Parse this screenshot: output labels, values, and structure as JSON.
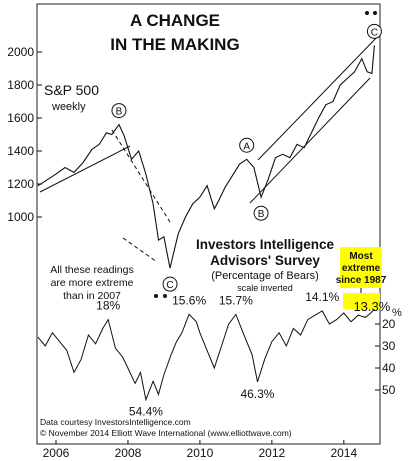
{
  "chart_data": [
    {
      "type": "line",
      "title": "A CHANGE IN THE MAKING",
      "series": [
        {
          "name": "S&P 500 weekly"
        }
      ],
      "series_label": "S&P 500",
      "series_sublabel": "weekly",
      "x_ticks": [
        "2006",
        "2008",
        "2010",
        "2012",
        "2014"
      ],
      "y_ticks": [
        1000,
        1200,
        1400,
        1600,
        1800,
        2000
      ],
      "ylim": [
        700,
        2100
      ],
      "x": [
        2005.5,
        2005.75,
        2006.0,
        2006.25,
        2006.5,
        2006.75,
        2007.0,
        2007.2,
        2007.4,
        2007.55,
        2007.75,
        2007.9,
        2008.1,
        2008.3,
        2008.5,
        2008.7,
        2008.85,
        2009.0,
        2009.17,
        2009.4,
        2009.6,
        2009.8,
        2010.0,
        2010.2,
        2010.4,
        2010.5,
        2010.7,
        2010.9,
        2011.1,
        2011.3,
        2011.5,
        2011.7,
        2011.9,
        2012.1,
        2012.3,
        2012.5,
        2012.7,
        2012.9,
        2013.1,
        2013.3,
        2013.5,
        2013.7,
        2013.9,
        2014.1,
        2014.3,
        2014.5,
        2014.65,
        2014.78,
        2014.85
      ],
      "values": [
        1190,
        1225,
        1260,
        1300,
        1270,
        1330,
        1410,
        1440,
        1510,
        1500,
        1560,
        1490,
        1350,
        1400,
        1260,
        1080,
        860,
        880,
        690,
        900,
        1000,
        1080,
        1120,
        1190,
        1050,
        1090,
        1180,
        1250,
        1320,
        1350,
        1300,
        1120,
        1230,
        1360,
        1380,
        1360,
        1440,
        1420,
        1510,
        1600,
        1680,
        1700,
        1800,
        1840,
        1880,
        1960,
        1880,
        1870,
        2040
      ],
      "wave_labels": [
        {
          "label": "B",
          "x": 2007.75
        },
        {
          "label": "C",
          "x": 2009.17
        },
        {
          "label": "A",
          "x": 2011.3
        },
        {
          "label": "B",
          "x": 2011.7
        },
        {
          "label": "C",
          "x": 2014.85
        }
      ]
    },
    {
      "type": "line",
      "title": "Investors Intelligence Advisors' Survey",
      "subtitle": "(Percentage of Bears)",
      "note": "scale inverted",
      "series": [
        {
          "name": "Percentage of Bears"
        }
      ],
      "y_axis_unit": "%",
      "y_ticks": [
        20,
        30,
        40,
        50
      ],
      "inverted": true,
      "ylim": [
        10,
        58
      ],
      "x": [
        2005.5,
        2005.7,
        2005.9,
        2006.1,
        2006.3,
        2006.5,
        2006.7,
        2006.9,
        2007.1,
        2007.3,
        2007.45,
        2007.65,
        2007.85,
        2008.0,
        2008.2,
        2008.35,
        2008.5,
        2008.7,
        2008.85,
        2009.0,
        2009.2,
        2009.35,
        2009.5,
        2009.7,
        2009.9,
        2010.0,
        2010.2,
        2010.4,
        2010.6,
        2010.8,
        2011.0,
        2011.2,
        2011.45,
        2011.6,
        2011.8,
        2012.0,
        2012.2,
        2012.4,
        2012.6,
        2012.8,
        2013.0,
        2013.2,
        2013.4,
        2013.6,
        2013.8,
        2014.0,
        2014.2,
        2014.4,
        2014.6,
        2014.75,
        2014.85
      ],
      "values": [
        26,
        30,
        24,
        28,
        32,
        42,
        36,
        25,
        29,
        22,
        18,
        31,
        35,
        40,
        47,
        42,
        54.4,
        46,
        52,
        43,
        34,
        28,
        24,
        15.6,
        19,
        24,
        32,
        40,
        30,
        20,
        15.7,
        24,
        34,
        46.3,
        36,
        28,
        24,
        30,
        22,
        25,
        18,
        16,
        14.1,
        20,
        18,
        15,
        19,
        16,
        17,
        15,
        13.3
      ],
      "annotations": [
        "18%",
        "54.4%",
        "15.6%",
        "15.7%",
        "46.3%",
        "14.1%",
        "13.3%"
      ],
      "highlight_box": "Most extreme since 1987",
      "highlight_value": "13.3%",
      "highlight_color": "#ffff00"
    }
  ],
  "notes": {
    "readings": "All these readings are more extreme than in 2007",
    "source_1": "Data courtesy InvestorsIntelligence.com",
    "source_2": "© November 2014 Elliott Wave International (www.elliottwave.com)"
  }
}
